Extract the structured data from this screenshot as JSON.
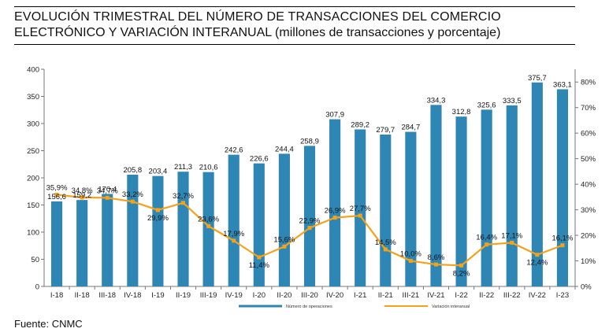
{
  "title": {
    "line1": "EVOLUCIÓN TRIMESTRAL DEL NÚMERO DE TRANSACCIONES DEL COMERCIO",
    "line2": "ELECTRÓNICO Y VARIACIÓN INTERANUAL",
    "subtitle": "(millones de transacciones y porcentaje)"
  },
  "source": "Fuente: CNMC",
  "colors": {
    "bar": "#2e86b5",
    "line": "#f5a21b"
  },
  "chart_data": {
    "type": "bar",
    "categories": [
      "I-18",
      "II-18",
      "III-18",
      "IV-18",
      "I-19",
      "II-19",
      "III-19",
      "IV-19",
      "I-20",
      "II-20",
      "III-20",
      "IV-20",
      "I-21",
      "II-21",
      "III-21",
      "IV-21",
      "I-22",
      "II-22",
      "III-22",
      "IV-22",
      "I-23"
    ],
    "series": [
      {
        "name": "Número de operaciones",
        "axis": "left",
        "values": [
          156.6,
          159.2,
          170.4,
          205.8,
          203.4,
          211.3,
          210.6,
          242.6,
          226.6,
          244.4,
          258.9,
          307.9,
          289.2,
          279.7,
          284.7,
          334.3,
          312.8,
          325.6,
          333.5,
          375.7,
          363.1
        ],
        "labels": [
          "156,6",
          "159,2",
          "170,4",
          "205,8",
          "203,4",
          "211,3",
          "210,6",
          "242,6",
          "226,6",
          "244,4",
          "258,9",
          "307,9",
          "289,2",
          "279,7",
          "284,7",
          "334,3",
          "312,8",
          "325,6",
          "333,5",
          "375,7",
          "363,1"
        ]
      },
      {
        "name": "Variación interanual",
        "axis": "right",
        "type": "line",
        "values": [
          35.9,
          34.8,
          34.7,
          33.2,
          29.9,
          32.7,
          23.6,
          17.9,
          11.4,
          15.6,
          22.9,
          26.9,
          27.7,
          14.5,
          10.0,
          8.6,
          8.2,
          16.4,
          17.1,
          12.4,
          16.1
        ],
        "labels": [
          "35,9%",
          "34,8%",
          "34,7%",
          "33,2%",
          "29,9%",
          "32,7%",
          "23,6%",
          "17,9%",
          "11,4%",
          "15,6%",
          "22,9%",
          "26,9%",
          "27,7%",
          "14,5%",
          "10,0%",
          "8,6%",
          "8,2%",
          "16,4%",
          "17,1%",
          "12,4%",
          "16,1%"
        ]
      }
    ],
    "ylim_left": [
      0,
      400
    ],
    "yticks_left": [
      "0",
      "50",
      "100",
      "150",
      "200",
      "250",
      "300",
      "350",
      "400"
    ],
    "ylim_right": [
      0,
      85
    ],
    "yticks_right": [
      "0%",
      "10%",
      "20%",
      "30%",
      "40%",
      "50%",
      "60%",
      "70%",
      "80%"
    ],
    "legend_position": "bottom",
    "grid": false
  }
}
